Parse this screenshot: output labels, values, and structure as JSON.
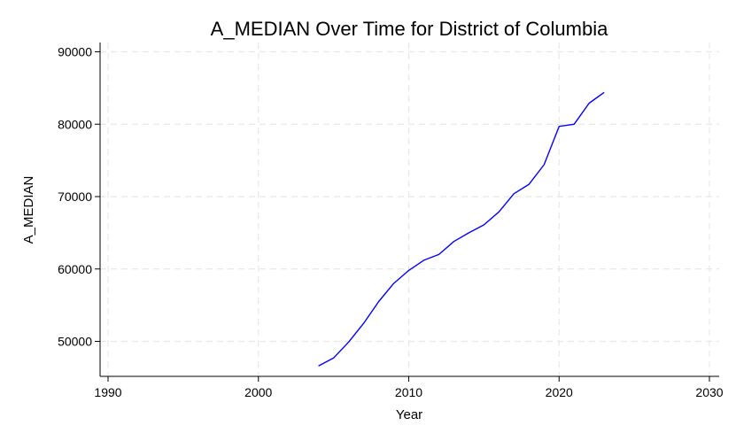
{
  "chart_data": {
    "type": "line",
    "title": "A_MEDIAN Over Time for District of Columbia",
    "xlabel": "Year",
    "ylabel": "A_MEDIAN",
    "xlim": [
      1990,
      2030
    ],
    "ylim": [
      45000,
      91000
    ],
    "xticks": [
      1990,
      2000,
      2010,
      2020,
      2030
    ],
    "yticks": [
      50000,
      60000,
      70000,
      80000,
      90000
    ],
    "grid": true,
    "series": [
      {
        "color": "#0000ff",
        "x": [
          2004,
          2005,
          2006,
          2007,
          2008,
          2009,
          2010,
          2011,
          2012,
          2013,
          2014,
          2015,
          2016,
          2017,
          2018,
          2019,
          2020,
          2021,
          2022,
          2023
        ],
        "values": [
          46600,
          47700,
          49900,
          52500,
          55500,
          58000,
          59800,
          61200,
          62000,
          63800,
          65000,
          66100,
          67900,
          70400,
          71700,
          74400,
          79700,
          80000,
          82900,
          84400
        ]
      }
    ]
  }
}
